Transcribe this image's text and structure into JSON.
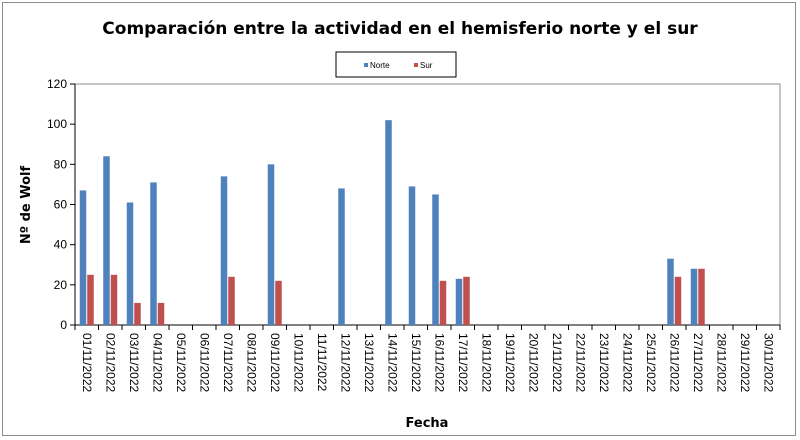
{
  "chart_data": {
    "type": "bar",
    "title": "Comparación entre la actividad en el hemisferio norte y el sur",
    "xlabel": "Fecha",
    "ylabel": "Nº de Wolf",
    "ylim": [
      0,
      120
    ],
    "yticks": [
      0,
      20,
      40,
      60,
      80,
      100,
      120
    ],
    "grid": false,
    "legend_position": "top-center",
    "categories": [
      "01/11/2022",
      "02/11/2022",
      "03/11/2022",
      "04/11/2022",
      "05/11/2022",
      "06/11/2022",
      "07/11/2022",
      "08/11/2022",
      "09/11/2022",
      "10/11/2022",
      "11/11/2022",
      "12/11/2022",
      "13/11/2022",
      "14/11/2022",
      "15/11/2022",
      "16/11/2022",
      "17/11/2022",
      "18/11/2022",
      "19/11/2022",
      "20/11/2022",
      "21/11/2022",
      "22/11/2022",
      "23/11/2022",
      "24/11/2022",
      "25/11/2022",
      "26/11/2022",
      "27/11/2022",
      "28/11/2022",
      "29/11/2022",
      "30/11/2022"
    ],
    "series": [
      {
        "name": "Norte",
        "color": "#4f81bd",
        "values": [
          67,
          84,
          61,
          71,
          null,
          null,
          74,
          null,
          80,
          null,
          null,
          68,
          null,
          102,
          69,
          65,
          23,
          null,
          null,
          null,
          null,
          null,
          null,
          null,
          null,
          33,
          28,
          null,
          null,
          null
        ]
      },
      {
        "name": "Sur",
        "color": "#c0504d",
        "values": [
          25,
          25,
          11,
          11,
          null,
          null,
          24,
          null,
          22,
          null,
          null,
          null,
          null,
          null,
          null,
          22,
          24,
          null,
          null,
          null,
          null,
          null,
          null,
          null,
          null,
          24,
          28,
          null,
          null,
          null
        ]
      }
    ]
  }
}
